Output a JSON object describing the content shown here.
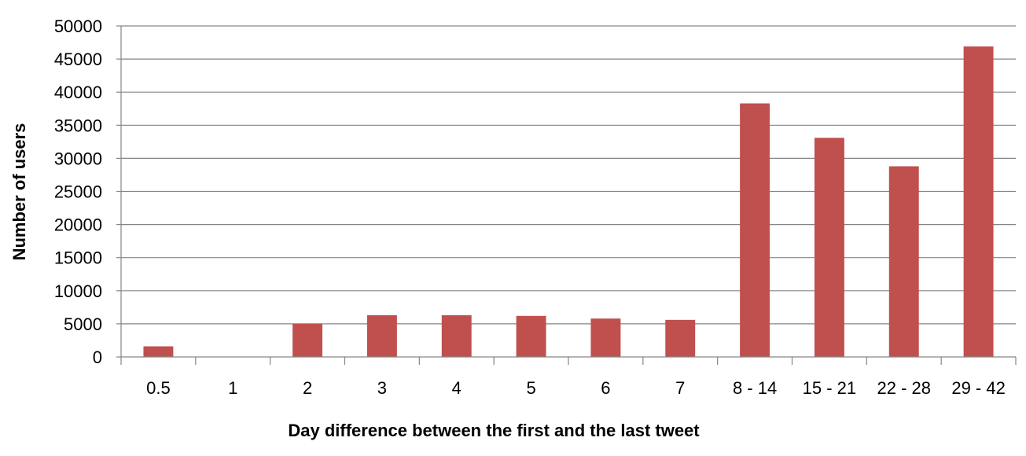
{
  "chart_data": {
    "type": "bar",
    "title": "",
    "xlabel": "Day difference between the first and the last tweet",
    "ylabel": "Number of users",
    "categories": [
      "0.5",
      "1",
      "2",
      "3",
      "4",
      "5",
      "6",
      "7",
      "8 - 14",
      "15 - 21",
      "22 - 28",
      "29 - 42"
    ],
    "values": [
      1600,
      0,
      5000,
      6300,
      6300,
      6200,
      5800,
      5600,
      38300,
      33100,
      28800,
      46900
    ],
    "ylim": [
      0,
      50000
    ],
    "yticks": [
      0,
      5000,
      10000,
      15000,
      20000,
      25000,
      30000,
      35000,
      40000,
      45000,
      50000
    ],
    "grid": true,
    "legend": "none",
    "colors": {
      "bar": "#C0504D",
      "grid": "#868686"
    }
  }
}
